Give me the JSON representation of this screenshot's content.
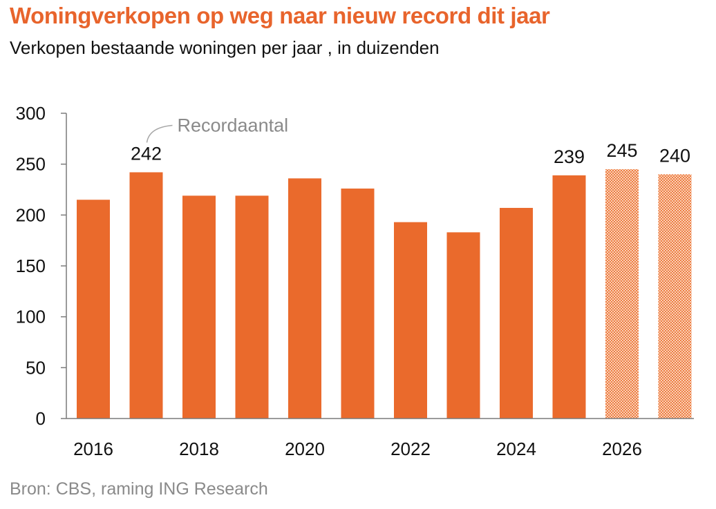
{
  "header": {
    "title": "Woningverkopen op weg naar nieuw record dit jaar",
    "subtitle": "Verkopen bestaande woningen per jaar , in duizenden"
  },
  "footer": {
    "source": "Bron: CBS, raming ING Research"
  },
  "colors": {
    "accent": "#e8642c",
    "bar": "#ea6a2c",
    "forecast_bar": "#f4a77c",
    "axis": "#7a7a7a",
    "annotation": "#8a8a8a"
  },
  "chart_data": {
    "type": "bar",
    "title": "Woningverkopen op weg naar nieuw record dit jaar",
    "subtitle": "Verkopen bestaande woningen per jaar , in duizenden",
    "categories": [
      "2016",
      "2017",
      "2018",
      "2019",
      "2020",
      "2021",
      "2022",
      "2023",
      "2024",
      "2025",
      "2026",
      "2027"
    ],
    "values": [
      215,
      242,
      219,
      219,
      236,
      226,
      193,
      183,
      207,
      239,
      245,
      240
    ],
    "forecast": [
      false,
      false,
      false,
      false,
      false,
      false,
      false,
      false,
      false,
      false,
      true,
      true
    ],
    "x_tick_labels": [
      "2016",
      "2018",
      "2020",
      "2022",
      "2024",
      "2026"
    ],
    "y_ticks": [
      0,
      50,
      100,
      150,
      200,
      250,
      300
    ],
    "ylim": [
      0,
      300
    ],
    "data_labels": [
      {
        "category": "2017",
        "text": "242"
      },
      {
        "category": "2025",
        "text": "239"
      },
      {
        "category": "2026",
        "text": "245"
      },
      {
        "category": "2027",
        "text": "240"
      }
    ],
    "annotations": [
      {
        "category": "2017",
        "text": "Recordaantal"
      }
    ],
    "grid": false,
    "legend": "none",
    "xlabel": "",
    "ylabel": ""
  }
}
